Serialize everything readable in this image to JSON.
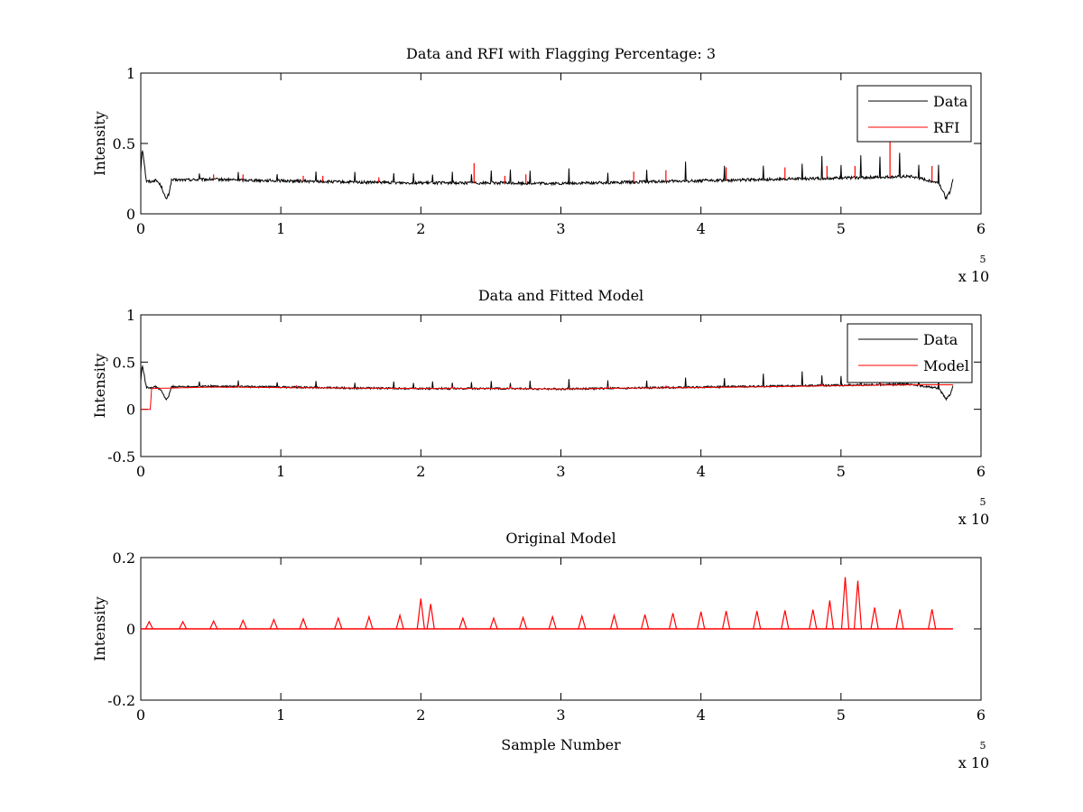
{
  "chart_data": [
    {
      "type": "line",
      "title": "Data and RFI with Flagging Percentage: 3",
      "xlabel": "",
      "ylabel": "Intensity",
      "xlim": [
        0,
        6
      ],
      "ylim": [
        0,
        1
      ],
      "x_ticks": [
        0,
        1,
        2,
        3,
        4,
        5,
        6
      ],
      "x_tick_labels": [
        "0",
        "1",
        "2",
        "3",
        "4",
        "5",
        "6"
      ],
      "y_ticks": [
        0,
        0.5,
        1
      ],
      "y_tick_labels": [
        "0",
        "0.5",
        "1"
      ],
      "x_multiplier": "x 10",
      "x_multiplier_exp": "5",
      "legend": "top-right",
      "grid": false,
      "series": [
        {
          "name": "Data",
          "color": "#000000",
          "x": [
            0,
            0.01,
            0.02,
            0.04,
            0.08,
            0.1,
            0.12,
            0.15,
            0.18,
            0.2,
            0.22,
            0.25,
            0.5,
            1.0,
            1.5,
            2.0,
            2.5,
            3.0,
            3.5,
            4.0,
            4.5,
            5.0,
            5.5,
            5.7,
            5.75,
            5.78,
            5.8
          ],
          "y": [
            0.3,
            0.47,
            0.4,
            0.23,
            0.23,
            0.24,
            0.23,
            0.19,
            0.1,
            0.14,
            0.24,
            0.24,
            0.245,
            0.235,
            0.225,
            0.22,
            0.22,
            0.215,
            0.225,
            0.235,
            0.245,
            0.255,
            0.265,
            0.22,
            0.11,
            0.16,
            0.25
          ]
        },
        {
          "name": "RFI",
          "color": "#ff0000",
          "x": [
            0.52,
            0.73,
            1.16,
            1.3,
            1.7,
            2.38,
            2.6,
            2.75,
            3.52,
            3.75,
            4.18,
            4.6,
            4.9,
            5.1,
            5.35,
            5.65
          ],
          "y": [
            0.28,
            0.28,
            0.27,
            0.27,
            0.26,
            0.36,
            0.27,
            0.28,
            0.3,
            0.31,
            0.33,
            0.33,
            0.34,
            0.34,
            0.51,
            0.34
          ]
        }
      ]
    },
    {
      "type": "line",
      "title": "Data and Fitted Model",
      "xlabel": "",
      "ylabel": "Intensity",
      "xlim": [
        0,
        6
      ],
      "ylim": [
        -0.5,
        1
      ],
      "x_ticks": [
        0,
        1,
        2,
        3,
        4,
        5,
        6
      ],
      "x_tick_labels": [
        "0",
        "1",
        "2",
        "3",
        "4",
        "5",
        "6"
      ],
      "y_ticks": [
        -0.5,
        0,
        0.5,
        1
      ],
      "y_tick_labels": [
        "-0.5",
        "0",
        "0.5",
        "1"
      ],
      "x_multiplier": "x 10",
      "x_multiplier_exp": "5",
      "legend": "top-right",
      "grid": false,
      "series": [
        {
          "name": "Data",
          "color": "#000000",
          "x": [
            0,
            0.01,
            0.02,
            0.04,
            0.08,
            0.1,
            0.12,
            0.15,
            0.18,
            0.2,
            0.22,
            0.25,
            0.5,
            1.0,
            1.5,
            2.0,
            2.5,
            3.0,
            3.5,
            4.0,
            4.5,
            5.0,
            5.5,
            5.7,
            5.75,
            5.78,
            5.8
          ],
          "y": [
            0.3,
            0.47,
            0.4,
            0.23,
            0.23,
            0.24,
            0.23,
            0.19,
            0.1,
            0.14,
            0.24,
            0.24,
            0.245,
            0.235,
            0.225,
            0.22,
            0.22,
            0.215,
            0.225,
            0.235,
            0.245,
            0.255,
            0.265,
            0.22,
            0.11,
            0.16,
            0.25
          ]
        },
        {
          "name": "Model",
          "color": "#ff0000",
          "x": [
            0,
            0.07,
            0.075,
            0.5,
            1.0,
            1.5,
            2.0,
            2.5,
            3.0,
            3.5,
            4.0,
            4.5,
            5.0,
            5.5,
            5.8
          ],
          "y": [
            0.0,
            0.0,
            0.22,
            0.235,
            0.23,
            0.225,
            0.22,
            0.22,
            0.215,
            0.225,
            0.23,
            0.24,
            0.25,
            0.26,
            0.26
          ]
        }
      ]
    },
    {
      "type": "line",
      "title": "Original Model",
      "xlabel": "Sample Number",
      "ylabel": "Intensity",
      "xlim": [
        0,
        6
      ],
      "ylim": [
        -0.2,
        0.2
      ],
      "x_ticks": [
        0,
        1,
        2,
        3,
        4,
        5,
        6
      ],
      "x_tick_labels": [
        "0",
        "1",
        "2",
        "3",
        "4",
        "5",
        "6"
      ],
      "y_ticks": [
        -0.2,
        0,
        0.2
      ],
      "y_tick_labels": [
        "-0.2",
        "0",
        "0.2"
      ],
      "x_multiplier": "x 10",
      "x_multiplier_exp": "5",
      "grid": false,
      "series": [
        {
          "color": "#ff0000",
          "x": [
            0,
            0.06,
            0.3,
            0.52,
            0.73,
            0.95,
            1.16,
            1.41,
            1.63,
            1.85,
            2.0,
            2.07,
            2.3,
            2.52,
            2.73,
            2.94,
            3.15,
            3.38,
            3.6,
            3.8,
            4.0,
            4.18,
            4.4,
            4.6,
            4.8,
            4.92,
            5.03,
            5.12,
            5.24,
            5.42,
            5.65,
            5.8
          ],
          "y": [
            0.0,
            0.02,
            0.02,
            0.022,
            0.024,
            0.026,
            0.028,
            0.03,
            0.034,
            0.038,
            0.085,
            0.07,
            0.03,
            0.03,
            0.032,
            0.034,
            0.036,
            0.038,
            0.04,
            0.044,
            0.048,
            0.05,
            0.05,
            0.052,
            0.054,
            0.08,
            0.145,
            0.135,
            0.06,
            0.055,
            0.055,
            0.0
          ]
        }
      ]
    }
  ]
}
